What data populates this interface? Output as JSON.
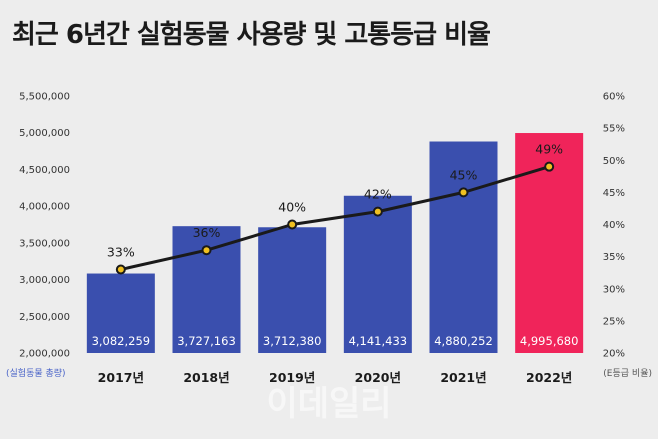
{
  "title": "최근 6년간 실험동물 사용량 및 고통등급 비율",
  "watermark": "이데일리",
  "colors": {
    "bar": "#3a4fae",
    "bar_highlight": "#f0245a",
    "line": "#1a1a1a",
    "marker": "#f0c020"
  },
  "chart_data": {
    "type": "bar",
    "title": "최근 6년간 실험동물 사용량 및 고통등급 비율",
    "categories": [
      "2017년",
      "2018년",
      "2019년",
      "2020년",
      "2021년",
      "2022년"
    ],
    "series": [
      {
        "name": "실험동물 총량",
        "type": "bar",
        "axis": "left",
        "values": [
          3082259,
          3727163,
          3712380,
          4141433,
          4880252,
          4995680
        ],
        "labels": [
          "3,082,259",
          "3,727,163",
          "3,712,380",
          "4,141,433",
          "4,880,252",
          "4,995,680"
        ],
        "highlight_index": 5
      },
      {
        "name": "E등급 비율",
        "type": "line",
        "axis": "right",
        "values": [
          33,
          36,
          40,
          42,
          45,
          49
        ],
        "labels": [
          "33%",
          "36%",
          "40%",
          "42%",
          "45%",
          "49%"
        ]
      }
    ],
    "left_axis": {
      "caption": "(실험동물 총량)",
      "ylim": [
        2000000,
        5500000
      ],
      "ticks": [
        2000000,
        2500000,
        3000000,
        3500000,
        4000000,
        4500000,
        5000000,
        5500000
      ],
      "tick_labels": [
        "2,000,000",
        "2,500,000",
        "3,000,000",
        "3,500,000",
        "4,000,000",
        "4,500,000",
        "5,000,000",
        "5,500,000"
      ]
    },
    "right_axis": {
      "caption": "(E등급 비율)",
      "ylim": [
        20,
        60
      ],
      "ticks": [
        20,
        25,
        30,
        35,
        40,
        45,
        50,
        55,
        60
      ],
      "tick_labels": [
        "20%",
        "25%",
        "30%",
        "35%",
        "40%",
        "45%",
        "50%",
        "55%",
        "60%"
      ]
    },
    "grid": false,
    "legend": "none"
  }
}
